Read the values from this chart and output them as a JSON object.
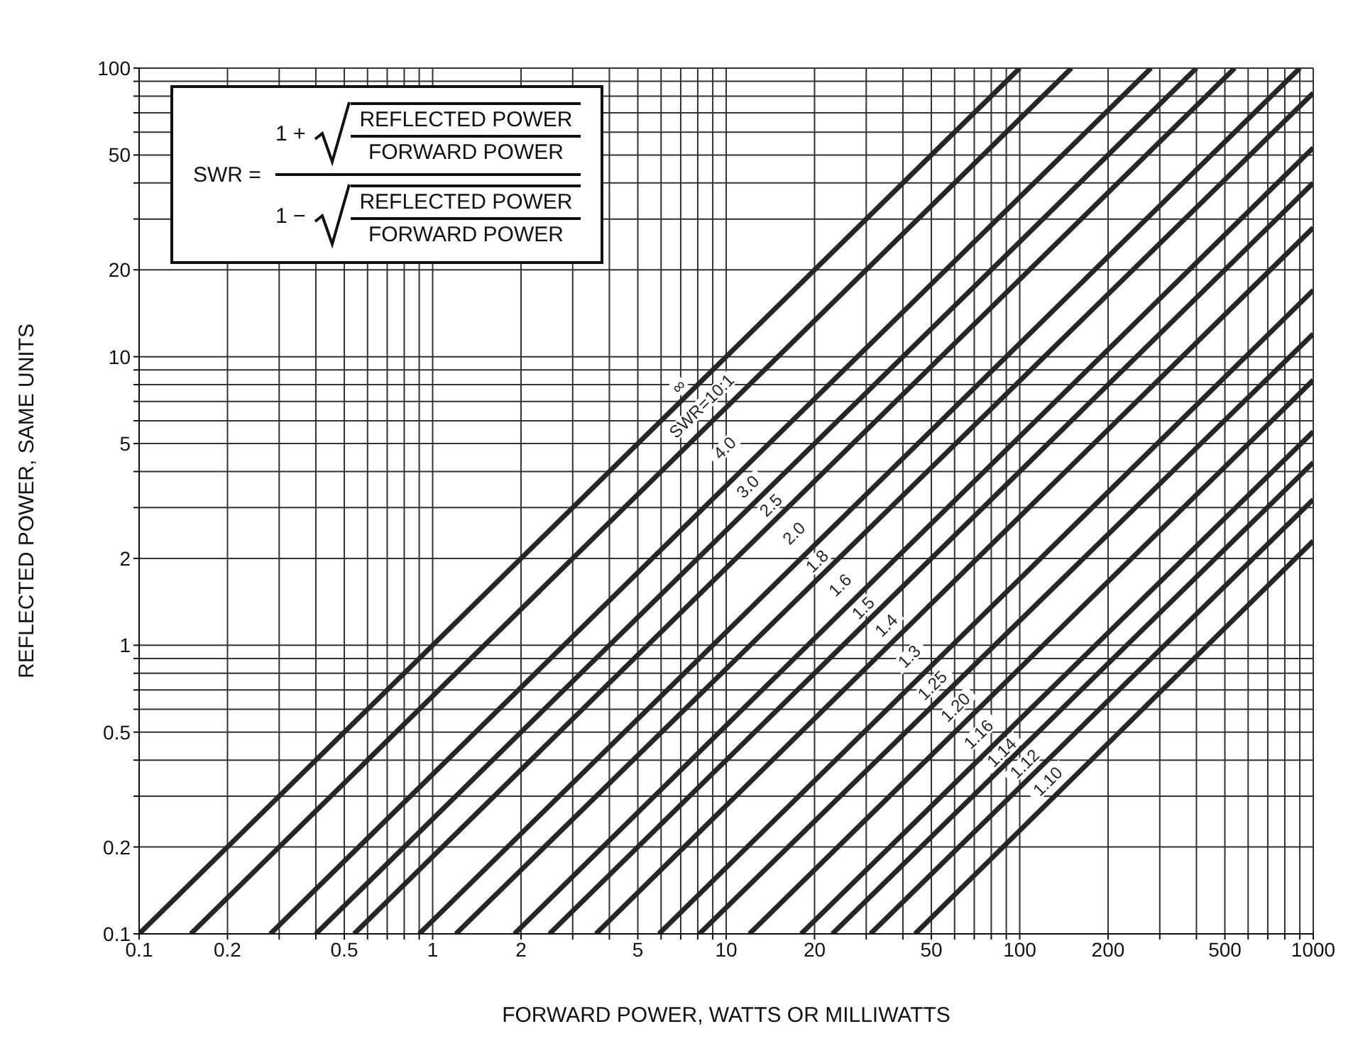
{
  "chart_data": {
    "type": "line",
    "xlabel": "FORWARD POWER, WATTS OR MILLIWATTS",
    "ylabel": "REFLECTED POWER, SAME UNITS",
    "annotations": [
      "SWR =",
      "1 +",
      "REFLECTED POWER",
      "FORWARD POWER",
      "1 −",
      "REFLECTED POWER",
      "FORWARD POWER"
    ],
    "log": "xy",
    "grid": true,
    "marker": "none",
    "line_style": "solid",
    "xlim": [
      0.1,
      1000
    ],
    "xticks": [
      0.1,
      0.2,
      {
        "value": 0.3,
        "label": null
      },
      {
        "value": 0.4,
        "label": null
      },
      0.5,
      {
        "value": 0.6,
        "label": null
      },
      {
        "value": 0.7,
        "label": null
      },
      {
        "value": 0.8,
        "label": null
      },
      {
        "value": 0.9,
        "label": null
      },
      1,
      2,
      {
        "value": 3,
        "label": null
      },
      {
        "value": 4,
        "label": null
      },
      5,
      {
        "value": 6,
        "label": null
      },
      {
        "value": 7,
        "label": null
      },
      {
        "value": 8,
        "label": null
      },
      {
        "value": 9,
        "label": null
      },
      10,
      20,
      {
        "value": 30,
        "label": null
      },
      {
        "value": 40,
        "label": null
      },
      50,
      {
        "value": 60,
        "label": null
      },
      {
        "value": 70,
        "label": null
      },
      {
        "value": 80,
        "label": null
      },
      {
        "value": 90,
        "label": null
      },
      100,
      200,
      {
        "value": 300,
        "label": null
      },
      {
        "value": 400,
        "label": null
      },
      500,
      {
        "value": 600,
        "label": null
      },
      {
        "value": 700,
        "label": null
      },
      {
        "value": 800,
        "label": null
      },
      {
        "value": 900,
        "label": null
      },
      1000
    ],
    "ylim": [
      0.1,
      100
    ],
    "yticks": [
      0.1,
      0.2,
      {
        "value": 0.3,
        "label": null
      },
      {
        "value": 0.4,
        "label": null
      },
      0.5,
      {
        "value": 0.6,
        "label": null
      },
      {
        "value": 0.7,
        "label": null
      },
      {
        "value": 0.8,
        "label": null
      },
      {
        "value": 0.9,
        "label": null
      },
      1,
      2,
      {
        "value": 3,
        "label": null
      },
      {
        "value": 4,
        "label": null
      },
      5,
      {
        "value": 6,
        "label": null
      },
      {
        "value": 7,
        "label": null
      },
      {
        "value": 8,
        "label": null
      },
      {
        "value": 9,
        "label": null
      },
      10,
      20,
      {
        "value": 30,
        "label": null
      },
      {
        "value": 40,
        "label": null
      },
      50,
      {
        "value": 60,
        "label": null
      },
      {
        "value": 70,
        "label": null
      },
      {
        "value": 80,
        "label": null
      },
      {
        "value": 90,
        "label": null
      },
      100
    ],
    "series": [
      {
        "name": "∞",
        "color": "#262626",
        "x": [
          0.1,
          100
        ],
        "values": [
          0.1,
          100
        ]
      },
      {
        "name": "SWR=10:1",
        "color": "#262626",
        "x": [
          0.15,
          150
        ],
        "values": [
          0.1,
          100
        ]
      },
      {
        "name": "4.0",
        "color": "#262626",
        "x": [
          0.28,
          280
        ],
        "values": [
          0.1,
          100
        ]
      },
      {
        "name": "3.0",
        "color": "#262626",
        "x": [
          0.4,
          400
        ],
        "values": [
          0.1,
          100
        ]
      },
      {
        "name": "2.5",
        "color": "#262626",
        "x": [
          0.54,
          540
        ],
        "values": [
          0.1,
          100
        ]
      },
      {
        "name": "2.0",
        "color": "#262626",
        "x": [
          0.9,
          900
        ],
        "values": [
          0.1,
          100
        ]
      },
      {
        "name": "1.8",
        "color": "#262626",
        "x": [
          1.2,
          1000
        ],
        "values": [
          0.1,
          82
        ]
      },
      {
        "name": "1.6",
        "color": "#262626",
        "x": [
          1.9,
          1000
        ],
        "values": [
          0.1,
          53
        ]
      },
      {
        "name": "1.5",
        "color": "#262626",
        "x": [
          2.5,
          1000
        ],
        "values": [
          0.1,
          40
        ]
      },
      {
        "name": "1.4",
        "color": "#262626",
        "x": [
          3.6,
          1000
        ],
        "values": [
          0.1,
          28
        ]
      },
      {
        "name": "1.3",
        "color": "#262626",
        "x": [
          5.9,
          1000
        ],
        "values": [
          0.1,
          17
        ]
      },
      {
        "name": "1.25",
        "color": "#262626",
        "x": [
          8.1,
          1000
        ],
        "values": [
          0.1,
          12
        ]
      },
      {
        "name": "1.20",
        "color": "#262626",
        "x": [
          12,
          1000
        ],
        "values": [
          0.1,
          8.3
        ]
      },
      {
        "name": "1.16",
        "color": "#262626",
        "x": [
          18,
          1000
        ],
        "values": [
          0.1,
          5.5
        ]
      },
      {
        "name": "1.14",
        "color": "#262626",
        "x": [
          23,
          1000
        ],
        "values": [
          0.1,
          4.3
        ]
      },
      {
        "name": "1.12",
        "color": "#262626",
        "x": [
          31,
          1000
        ],
        "values": [
          0.1,
          3.2
        ]
      },
      {
        "name": "1.10",
        "color": "#262626",
        "x": [
          44,
          1000
        ],
        "values": [
          0.1,
          2.3
        ]
      }
    ]
  }
}
